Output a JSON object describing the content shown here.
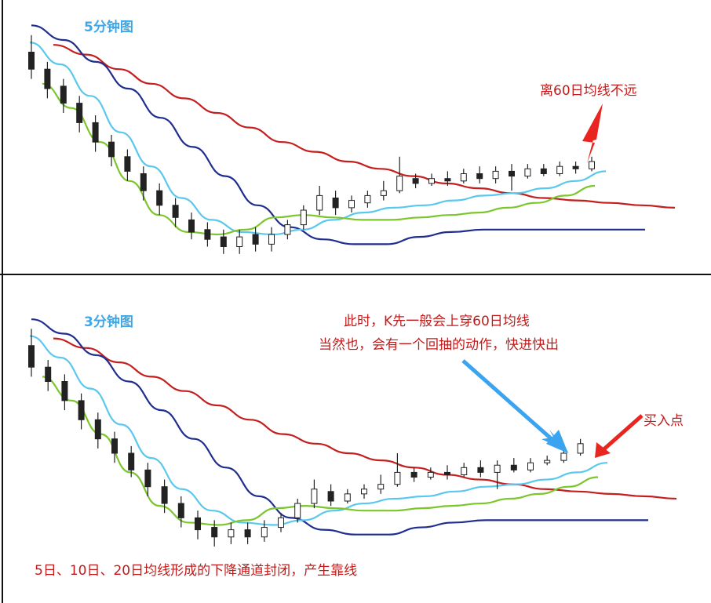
{
  "chart_data": [
    {
      "type": "candlestick",
      "title": "5分钟图",
      "annotations": [
        "离60日均线不远"
      ],
      "series": [
        {
          "name": "",
          "color": "#c41e1e",
          "values": [
            88,
            84,
            78,
            72,
            66,
            60,
            54,
            48,
            44,
            40,
            37,
            34,
            31,
            29,
            27,
            25,
            24,
            23,
            22,
            21
          ]
        },
        {
          "name": "",
          "color": "#1f2d8f",
          "values": [
            96,
            90,
            81,
            70,
            58,
            46,
            34,
            22,
            13,
            8,
            6,
            6,
            9,
            11,
            12,
            12,
            12,
            12,
            12,
            12
          ]
        },
        {
          "name": "",
          "color": "#5ac8ee",
          "values": [
            89,
            80,
            67,
            52,
            38,
            25,
            16,
            11,
            10,
            12,
            16,
            19,
            21,
            22,
            24,
            26,
            27,
            29,
            32,
            36
          ]
        },
        {
          "name": "",
          "color": "#7cc62d",
          "values": [
            72,
            62,
            48,
            32,
            18,
            11,
            10,
            12,
            17,
            18,
            17,
            16,
            16,
            17,
            18,
            19,
            21,
            23,
            26,
            30
          ]
        }
      ],
      "candles": [
        {
          "open": 85,
          "close": 78,
          "high": 92,
          "low": 74
        },
        {
          "open": 78,
          "close": 70,
          "high": 81,
          "low": 66
        },
        {
          "open": 71,
          "close": 64,
          "high": 74,
          "low": 60
        },
        {
          "open": 64,
          "close": 56,
          "high": 67,
          "low": 52
        },
        {
          "open": 56,
          "close": 48,
          "high": 59,
          "low": 44
        },
        {
          "open": 48,
          "close": 42,
          "high": 51,
          "low": 38
        },
        {
          "open": 42,
          "close": 36,
          "high": 45,
          "low": 32
        },
        {
          "open": 35,
          "close": 28,
          "high": 38,
          "low": 24
        },
        {
          "open": 28,
          "close": 22,
          "high": 31,
          "low": 18
        },
        {
          "open": 22,
          "close": 17,
          "high": 25,
          "low": 13
        },
        {
          "open": 16,
          "close": 11,
          "high": 19,
          "low": 8
        },
        {
          "open": 12,
          "close": 8,
          "high": 15,
          "low": 5
        },
        {
          "open": 9,
          "close": 5,
          "high": 12,
          "low": 2
        },
        {
          "open": 5,
          "close": 9,
          "high": 12,
          "low": 2
        },
        {
          "open": 10,
          "close": 6,
          "high": 13,
          "low": 3
        },
        {
          "open": 6,
          "close": 10,
          "high": 13,
          "low": 3
        },
        {
          "open": 10,
          "close": 14,
          "high": 16,
          "low": 8
        },
        {
          "open": 14,
          "close": 20,
          "high": 22,
          "low": 12
        },
        {
          "open": 20,
          "close": 26,
          "high": 30,
          "low": 18
        },
        {
          "open": 25,
          "close": 21,
          "high": 28,
          "low": 18
        },
        {
          "open": 21,
          "close": 24,
          "high": 26,
          "low": 19
        },
        {
          "open": 23,
          "close": 26,
          "high": 28,
          "low": 21
        },
        {
          "open": 26,
          "close": 28,
          "high": 32,
          "low": 24
        },
        {
          "open": 28,
          "close": 34,
          "high": 42,
          "low": 27
        },
        {
          "open": 33,
          "close": 31,
          "high": 35,
          "low": 29
        },
        {
          "open": 31,
          "close": 33,
          "high": 35,
          "low": 30
        },
        {
          "open": 33,
          "close": 32,
          "high": 36,
          "low": 30
        },
        {
          "open": 32,
          "close": 35,
          "high": 37,
          "low": 31
        },
        {
          "open": 35,
          "close": 33,
          "high": 38,
          "low": 31
        },
        {
          "open": 33,
          "close": 36,
          "high": 38,
          "low": 31
        },
        {
          "open": 36,
          "close": 34,
          "high": 39,
          "low": 28
        },
        {
          "open": 34,
          "close": 37,
          "high": 39,
          "low": 33
        },
        {
          "open": 37,
          "close": 35,
          "high": 39,
          "low": 34
        },
        {
          "open": 35,
          "close": 38,
          "high": 40,
          "low": 34
        },
        {
          "open": 38,
          "close": 37,
          "high": 40,
          "low": 35
        },
        {
          "open": 37,
          "close": 40,
          "high": 42,
          "low": 36
        }
      ]
    },
    {
      "type": "candlestick",
      "title": "3分钟图",
      "annotations": [
        "此时，K先一般会上穿60日均线",
        "当然也，会有一个回抽的动作，快进快出",
        "买入点",
        "5日、10日、20日均线形成的下降通道封闭，产生靠线"
      ],
      "series": [
        {
          "name": "",
          "color": "#c41e1e",
          "values": [
            88,
            84,
            78,
            72,
            66,
            60,
            54,
            48,
            44,
            40,
            37,
            34,
            31,
            29,
            27,
            25,
            24,
            23,
            22,
            21
          ]
        },
        {
          "name": "",
          "color": "#1f2d8f",
          "values": [
            96,
            90,
            81,
            70,
            58,
            46,
            34,
            22,
            13,
            8,
            6,
            6,
            9,
            11,
            12,
            12,
            12,
            12,
            12,
            12
          ]
        },
        {
          "name": "",
          "color": "#5ac8ee",
          "values": [
            89,
            80,
            67,
            52,
            38,
            25,
            16,
            11,
            10,
            12,
            16,
            19,
            21,
            22,
            24,
            26,
            27,
            29,
            32,
            36
          ]
        },
        {
          "name": "",
          "color": "#7cc62d",
          "values": [
            72,
            62,
            48,
            32,
            18,
            11,
            10,
            12,
            17,
            18,
            17,
            16,
            16,
            17,
            18,
            19,
            21,
            23,
            26,
            30
          ]
        }
      ],
      "candles": [
        {
          "open": 85,
          "close": 76,
          "high": 92,
          "low": 72
        },
        {
          "open": 76,
          "close": 70,
          "high": 79,
          "low": 66
        },
        {
          "open": 70,
          "close": 62,
          "high": 73,
          "low": 58
        },
        {
          "open": 62,
          "close": 54,
          "high": 65,
          "low": 50
        },
        {
          "open": 54,
          "close": 46,
          "high": 57,
          "low": 42
        },
        {
          "open": 46,
          "close": 40,
          "high": 49,
          "low": 36
        },
        {
          "open": 40,
          "close": 33,
          "high": 43,
          "low": 30
        },
        {
          "open": 33,
          "close": 26,
          "high": 36,
          "low": 22
        },
        {
          "open": 26,
          "close": 19,
          "high": 29,
          "low": 15
        },
        {
          "open": 19,
          "close": 13,
          "high": 22,
          "low": 9
        },
        {
          "open": 13,
          "close": 8,
          "high": 16,
          "low": 4
        },
        {
          "open": 9,
          "close": 5,
          "high": 12,
          "low": 1
        },
        {
          "open": 5,
          "close": 8,
          "high": 11,
          "low": 2
        },
        {
          "open": 8,
          "close": 5,
          "high": 11,
          "low": 2
        },
        {
          "open": 5,
          "close": 9,
          "high": 12,
          "low": 3
        },
        {
          "open": 9,
          "close": 13,
          "high": 15,
          "low": 7
        },
        {
          "open": 13,
          "close": 19,
          "high": 21,
          "low": 11
        },
        {
          "open": 19,
          "close": 25,
          "high": 29,
          "low": 17
        },
        {
          "open": 24,
          "close": 20,
          "high": 27,
          "low": 18
        },
        {
          "open": 20,
          "close": 23,
          "high": 25,
          "low": 19
        },
        {
          "open": 23,
          "close": 25,
          "high": 27,
          "low": 21
        },
        {
          "open": 25,
          "close": 27,
          "high": 31,
          "low": 23
        },
        {
          "open": 27,
          "close": 32,
          "high": 40,
          "low": 26
        },
        {
          "open": 32,
          "close": 30,
          "high": 34,
          "low": 28
        },
        {
          "open": 30,
          "close": 32,
          "high": 34,
          "low": 29
        },
        {
          "open": 32,
          "close": 31,
          "high": 35,
          "low": 29
        },
        {
          "open": 31,
          "close": 34,
          "high": 36,
          "low": 30
        },
        {
          "open": 34,
          "close": 32,
          "high": 37,
          "low": 30
        },
        {
          "open": 32,
          "close": 35,
          "high": 37,
          "low": 25
        },
        {
          "open": 35,
          "close": 33,
          "high": 38,
          "low": 32
        },
        {
          "open": 33,
          "close": 36,
          "high": 38,
          "low": 32
        },
        {
          "open": 36,
          "close": 37,
          "high": 39,
          "low": 35
        },
        {
          "open": 37,
          "close": 40,
          "high": 42,
          "low": 36
        },
        {
          "open": 40,
          "close": 44,
          "high": 46,
          "low": 39
        }
      ]
    }
  ]
}
